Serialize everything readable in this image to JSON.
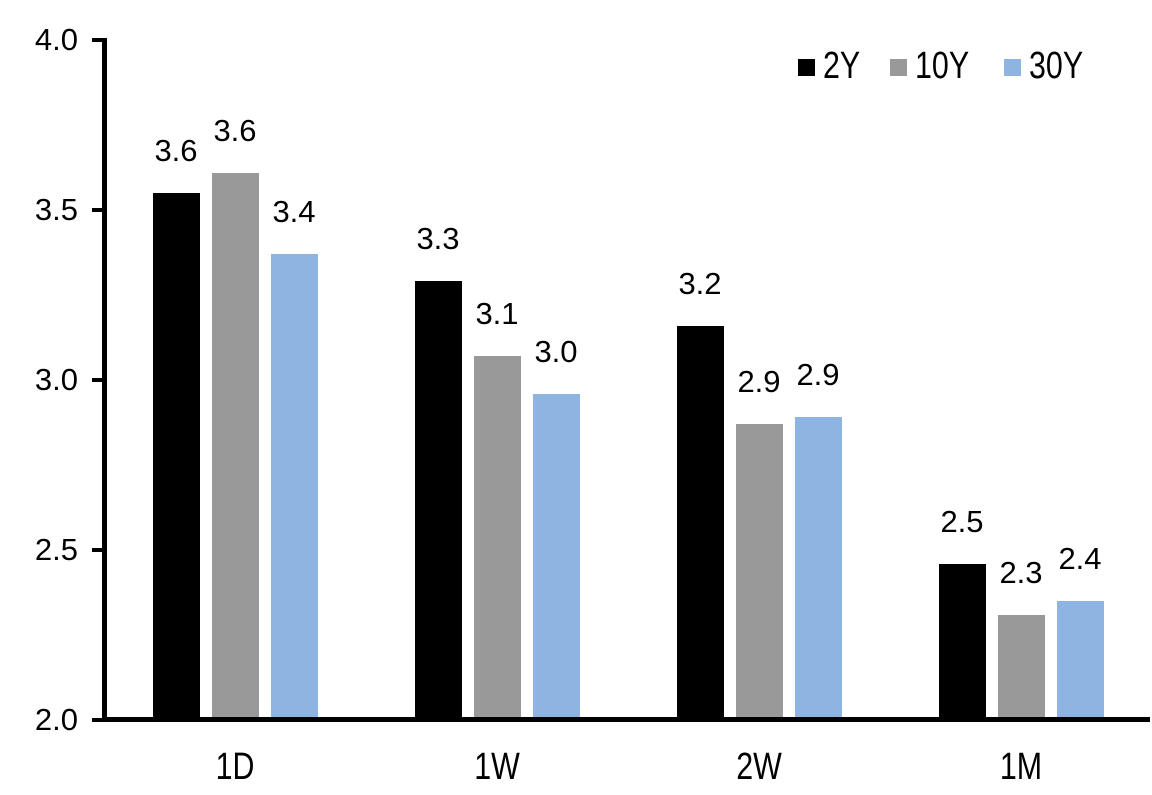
{
  "chart_data": {
    "type": "bar",
    "title": "",
    "xlabel": "",
    "ylabel": "",
    "categories": [
      "1D",
      "1W",
      "2W",
      "1M"
    ],
    "series": [
      {
        "name": "2Y",
        "color": "#000000",
        "values": [
          3.55,
          3.29,
          3.16,
          2.46
        ],
        "labels": [
          "3.6",
          "3.3",
          "3.2",
          "2.5"
        ]
      },
      {
        "name": "10Y",
        "color": "#999999",
        "values": [
          3.61,
          3.07,
          2.87,
          2.31
        ],
        "labels": [
          "3.6",
          "3.1",
          "2.9",
          "2.3"
        ]
      },
      {
        "name": "30Y",
        "color": "#8eb4e2",
        "values": [
          3.37,
          2.96,
          2.89,
          2.35
        ],
        "labels": [
          "3.4",
          "3.0",
          "2.9",
          "2.4"
        ]
      }
    ],
    "y_axis": {
      "min": 2.0,
      "max": 4.0,
      "step": 0.5,
      "tick_labels": [
        "2.0",
        "2.5",
        "3.0",
        "3.5",
        "4.0"
      ]
    },
    "x_axis": {
      "tick_labels": [
        "1D",
        "1W",
        "2W",
        "1M"
      ]
    },
    "legend": {
      "position": "top-right",
      "entries": [
        "2Y",
        "10Y",
        "30Y"
      ]
    },
    "grid": false,
    "background_color": "#ffffff",
    "axis_color": "#000000",
    "text_color": "#000000"
  }
}
